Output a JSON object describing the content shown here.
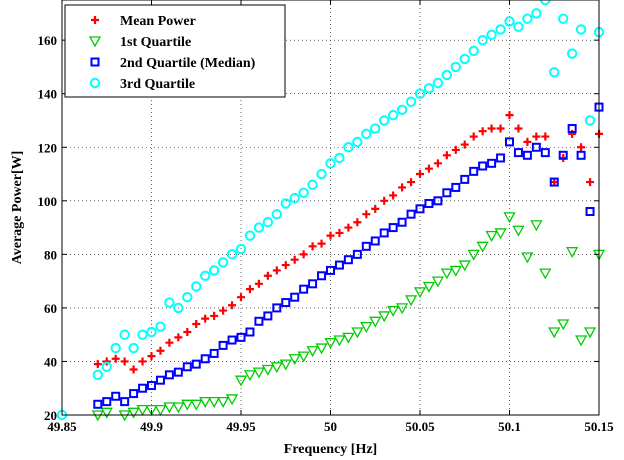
{
  "chart_data": {
    "type": "scatter",
    "xlabel": "Frequency [Hz]",
    "ylabel": "Average Power[W]",
    "xlim": [
      49.85,
      50.15
    ],
    "ylim": [
      20,
      175
    ],
    "xticks": [
      49.85,
      49.9,
      49.95,
      50,
      50.05,
      50.1,
      50.15
    ],
    "xtick_labels": [
      "49.85",
      "49.9",
      "49.95",
      "50",
      "50.05",
      "50.1",
      "50.15"
    ],
    "yticks": [
      20,
      40,
      60,
      80,
      100,
      120,
      140,
      160
    ],
    "ytick_labels": [
      "20",
      "40",
      "60",
      "80",
      "100",
      "120",
      "140",
      "160"
    ],
    "grid": true,
    "legend_position": "top-left",
    "series": [
      {
        "name": "Mean Power",
        "marker": "plus",
        "color": "#ff0000",
        "x": [
          49.87,
          49.875,
          49.88,
          49.885,
          49.89,
          49.895,
          49.9,
          49.905,
          49.91,
          49.915,
          49.92,
          49.925,
          49.93,
          49.935,
          49.94,
          49.945,
          49.95,
          49.955,
          49.96,
          49.965,
          49.97,
          49.975,
          49.98,
          49.985,
          49.99,
          49.995,
          50,
          50.005,
          50.01,
          50.015,
          50.02,
          50.025,
          50.03,
          50.035,
          50.04,
          50.045,
          50.05,
          50.055,
          50.06,
          50.065,
          50.07,
          50.075,
          50.08,
          50.085,
          50.09,
          50.095,
          50.1,
          50.105,
          50.11,
          50.115,
          50.12,
          50.125,
          50.13,
          50.135,
          50.14,
          50.145,
          50.15
        ],
        "y": [
          39,
          40,
          41,
          40,
          37,
          40,
          42,
          44,
          47,
          49,
          51,
          54,
          56,
          57,
          59,
          61,
          64,
          67,
          69,
          72,
          74,
          76,
          78,
          80,
          83,
          84,
          87,
          88,
          90,
          92,
          95,
          97,
          100,
          102,
          105,
          107,
          110,
          112,
          114,
          117,
          119,
          121,
          124,
          126,
          127,
          127,
          132,
          127,
          122,
          124,
          124,
          107,
          116,
          125,
          120,
          107,
          125
        ]
      },
      {
        "name": "1st Quartile",
        "marker": "triangle-down",
        "color": "#00cc00",
        "x": [
          49.87,
          49.875,
          49.88,
          49.885,
          49.89,
          49.895,
          49.9,
          49.905,
          49.91,
          49.915,
          49.92,
          49.925,
          49.93,
          49.935,
          49.94,
          49.945,
          49.95,
          49.955,
          49.96,
          49.965,
          49.97,
          49.975,
          49.98,
          49.985,
          49.99,
          49.995,
          50,
          50.005,
          50.01,
          50.015,
          50.02,
          50.025,
          50.03,
          50.035,
          50.04,
          50.045,
          50.05,
          50.055,
          50.06,
          50.065,
          50.07,
          50.075,
          50.08,
          50.085,
          50.09,
          50.095,
          50.1,
          50.105,
          50.11,
          50.115,
          50.12,
          50.125,
          50.13,
          50.135,
          50.14,
          50.145,
          50.15
        ],
        "y": [
          20,
          21,
          19,
          20,
          21,
          22,
          22,
          22,
          23,
          23,
          24,
          24,
          25,
          25,
          25,
          26,
          33,
          35,
          36,
          37,
          38,
          39,
          41,
          42,
          44,
          45,
          47,
          48,
          49,
          51,
          53,
          55,
          57,
          59,
          60,
          63,
          66,
          68,
          70,
          73,
          74,
          76,
          80,
          83,
          87,
          88,
          94,
          89,
          79,
          91,
          73,
          51,
          54,
          81,
          48,
          51,
          80
        ]
      },
      {
        "name": "2nd Quartile (Median)",
        "marker": "square",
        "color": "#0000ff",
        "x": [
          49.87,
          49.875,
          49.88,
          49.885,
          49.89,
          49.895,
          49.9,
          49.905,
          49.91,
          49.915,
          49.92,
          49.925,
          49.93,
          49.935,
          49.94,
          49.945,
          49.95,
          49.955,
          49.96,
          49.965,
          49.97,
          49.975,
          49.98,
          49.985,
          49.99,
          49.995,
          50,
          50.005,
          50.01,
          50.015,
          50.02,
          50.025,
          50.03,
          50.035,
          50.04,
          50.045,
          50.05,
          50.055,
          50.06,
          50.065,
          50.07,
          50.075,
          50.08,
          50.085,
          50.09,
          50.095,
          50.1,
          50.105,
          50.11,
          50.115,
          50.12,
          50.125,
          50.13,
          50.135,
          50.14,
          50.145,
          50.15
        ],
        "y": [
          24,
          25,
          27,
          25,
          28,
          30,
          31,
          33,
          35,
          36,
          38,
          39,
          41,
          43,
          46,
          48,
          49,
          51,
          55,
          57,
          60,
          62,
          64,
          67,
          69,
          72,
          74,
          76,
          78,
          80,
          83,
          85,
          88,
          90,
          92,
          95,
          97,
          99,
          100,
          103,
          105,
          108,
          111,
          113,
          114,
          116,
          122,
          118,
          117,
          120,
          118,
          107,
          117,
          127,
          117,
          96,
          135
        ]
      },
      {
        "name": "3rd Quartile",
        "marker": "circle",
        "color": "#00ffff",
        "x": [
          49.85,
          49.87,
          49.875,
          49.88,
          49.885,
          49.89,
          49.895,
          49.9,
          49.905,
          49.91,
          49.915,
          49.92,
          49.925,
          49.93,
          49.935,
          49.94,
          49.945,
          49.95,
          49.955,
          49.96,
          49.965,
          49.97,
          49.975,
          49.98,
          49.985,
          49.99,
          49.995,
          50,
          50.005,
          50.01,
          50.015,
          50.02,
          50.025,
          50.03,
          50.035,
          50.04,
          50.045,
          50.05,
          50.055,
          50.06,
          50.065,
          50.07,
          50.075,
          50.08,
          50.085,
          50.09,
          50.095,
          50.1,
          50.105,
          50.11,
          50.115,
          50.12,
          50.125,
          50.13,
          50.135,
          50.14,
          50.145,
          50.15
        ],
        "y": [
          20,
          35,
          38,
          45,
          50,
          45,
          50,
          51,
          53,
          62,
          60,
          64,
          68,
          72,
          74,
          77,
          80,
          82,
          87,
          90,
          92,
          95,
          99,
          101,
          103,
          106,
          110,
          114,
          116,
          120,
          122,
          125,
          127,
          130,
          132,
          134,
          137,
          140,
          142,
          144,
          147,
          150,
          153,
          156,
          160,
          162,
          164,
          167,
          165,
          168,
          170,
          175,
          148,
          168,
          155,
          164,
          130,
          163
        ]
      }
    ]
  }
}
